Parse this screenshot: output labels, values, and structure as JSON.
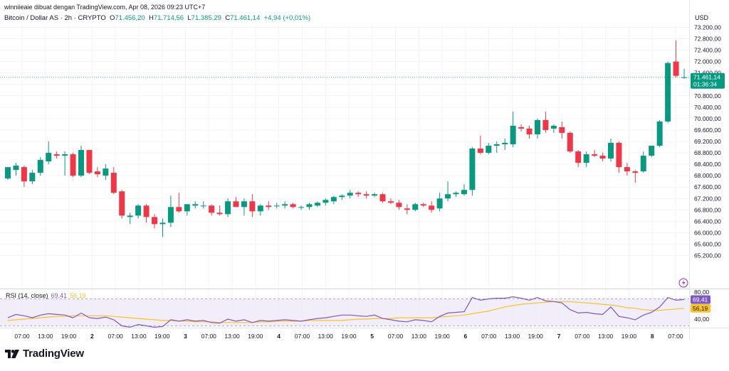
{
  "header": {
    "attribution": "winniieaie dibuat dengan TradingView.com, Apr 08, 2026 09:23 UTC+7",
    "symbol": "Bitcoin / Dollar AS · 2h · CRYPTO",
    "o_label": "O",
    "o_value": "71.456,20",
    "h_label": "H",
    "h_value": "71.714,56",
    "l_label": "L",
    "l_value": "71.385,29",
    "c_label": "C",
    "c_value": "71.461,14",
    "change": "+4,94 (+0,01%)"
  },
  "currency": "USD",
  "brand": {
    "name": "TradingView",
    "logo_icon": "tradingview-logo-icon"
  },
  "colors": {
    "up": "#089981",
    "down": "#f23645",
    "rsi": "#7e57c2",
    "rsi_ma": "#f7c325",
    "rsi_band": "#ede7f6"
  },
  "chart_data": [
    {
      "type": "candlestick",
      "title": "Bitcoin / Dollar AS · 2h · CRYPTO",
      "ylabel": "USD",
      "ylim": [
        65000,
        73500
      ],
      "yticks": [
        "73.200,00",
        "72.800,00",
        "72.400,00",
        "72.000,00",
        "71.600,00",
        "71.200,00",
        "70.800,00",
        "70.400,00",
        "70.000,00",
        "69.600,00",
        "69.200,00",
        "68.800,00",
        "68.400,00",
        "68.000,00",
        "67.600,00",
        "67.200,00",
        "66.800,00",
        "66.400,00",
        "66.000,00",
        "65.600,00",
        "65.200,00"
      ],
      "xticks": [
        "07:00",
        "13:00",
        "19:00",
        "2",
        "07:00",
        "13:00",
        "19:00",
        "3",
        "07:00",
        "13:00",
        "19:00",
        "4",
        "07:00",
        "13:00",
        "19:00",
        "5",
        "07:00",
        "13:00",
        "19:00",
        "6",
        "07:00",
        "13:00",
        "19:00",
        "7",
        "07:00",
        "13:00",
        "19:00",
        "8",
        "07:00"
      ],
      "last_price_label": "71.461,14",
      "countdown_label": "01:36:34",
      "candles": [
        {
          "o": 67900,
          "h": 68250,
          "l": 67850,
          "c": 68300
        },
        {
          "o": 68200,
          "h": 68450,
          "l": 68000,
          "c": 68350
        },
        {
          "o": 68300,
          "h": 68350,
          "l": 67600,
          "c": 67800
        },
        {
          "o": 67800,
          "h": 68200,
          "l": 67700,
          "c": 68100
        },
        {
          "o": 68100,
          "h": 68650,
          "l": 68000,
          "c": 68550
        },
        {
          "o": 68500,
          "h": 69200,
          "l": 68400,
          "c": 68800
        },
        {
          "o": 68750,
          "h": 68850,
          "l": 68600,
          "c": 68700
        },
        {
          "o": 68700,
          "h": 68850,
          "l": 68000,
          "c": 68750
        },
        {
          "o": 68750,
          "h": 68800,
          "l": 67950,
          "c": 68000
        },
        {
          "o": 68000,
          "h": 69050,
          "l": 67950,
          "c": 68900
        },
        {
          "o": 68900,
          "h": 68900,
          "l": 68050,
          "c": 68100
        },
        {
          "o": 68150,
          "h": 68300,
          "l": 67950,
          "c": 68050
        },
        {
          "o": 68000,
          "h": 68400,
          "l": 67850,
          "c": 68250
        },
        {
          "o": 68100,
          "h": 68300,
          "l": 67350,
          "c": 67400
        },
        {
          "o": 67450,
          "h": 67500,
          "l": 66500,
          "c": 66600
        },
        {
          "o": 66550,
          "h": 66700,
          "l": 66300,
          "c": 66600
        },
        {
          "o": 66600,
          "h": 67000,
          "l": 66500,
          "c": 66950
        },
        {
          "o": 66950,
          "h": 67000,
          "l": 66350,
          "c": 66550
        },
        {
          "o": 66550,
          "h": 66650,
          "l": 66150,
          "c": 66300
        },
        {
          "o": 66300,
          "h": 66500,
          "l": 65850,
          "c": 66350
        },
        {
          "o": 66350,
          "h": 67300,
          "l": 66200,
          "c": 66900
        },
        {
          "o": 66900,
          "h": 67400,
          "l": 66700,
          "c": 66750
        },
        {
          "o": 66750,
          "h": 67000,
          "l": 66600,
          "c": 67000
        },
        {
          "o": 66950,
          "h": 67100,
          "l": 66850,
          "c": 67000
        },
        {
          "o": 66950,
          "h": 67100,
          "l": 66850,
          "c": 66950
        },
        {
          "o": 66950,
          "h": 67000,
          "l": 66600,
          "c": 66700
        },
        {
          "o": 66700,
          "h": 66950,
          "l": 66600,
          "c": 66650
        },
        {
          "o": 66650,
          "h": 67200,
          "l": 66550,
          "c": 67100
        },
        {
          "o": 67100,
          "h": 67250,
          "l": 66900,
          "c": 66900
        },
        {
          "o": 66900,
          "h": 67200,
          "l": 66600,
          "c": 67100
        },
        {
          "o": 67100,
          "h": 67350,
          "l": 66550,
          "c": 66750
        },
        {
          "o": 66750,
          "h": 67000,
          "l": 66600,
          "c": 66950
        },
        {
          "o": 66950,
          "h": 67100,
          "l": 66800,
          "c": 66900
        },
        {
          "o": 66950,
          "h": 67050,
          "l": 66850,
          "c": 66950
        },
        {
          "o": 66950,
          "h": 67100,
          "l": 66850,
          "c": 67000
        },
        {
          "o": 67000,
          "h": 67050,
          "l": 66850,
          "c": 66900
        },
        {
          "o": 66900,
          "h": 66950,
          "l": 66800,
          "c": 66900
        },
        {
          "o": 66900,
          "h": 67050,
          "l": 66800,
          "c": 67000
        },
        {
          "o": 66950,
          "h": 67100,
          "l": 66900,
          "c": 67050
        },
        {
          "o": 67050,
          "h": 67200,
          "l": 66950,
          "c": 67150
        },
        {
          "o": 67100,
          "h": 67300,
          "l": 67000,
          "c": 67250
        },
        {
          "o": 67250,
          "h": 67350,
          "l": 67150,
          "c": 67300
        },
        {
          "o": 67300,
          "h": 67500,
          "l": 67200,
          "c": 67400
        },
        {
          "o": 67400,
          "h": 67450,
          "l": 67250,
          "c": 67350
        },
        {
          "o": 67350,
          "h": 67450,
          "l": 67200,
          "c": 67300
        },
        {
          "o": 67300,
          "h": 67400,
          "l": 67250,
          "c": 67350
        },
        {
          "o": 67350,
          "h": 67400,
          "l": 67050,
          "c": 67100
        },
        {
          "o": 67100,
          "h": 67200,
          "l": 67000,
          "c": 67050
        },
        {
          "o": 67050,
          "h": 67150,
          "l": 66800,
          "c": 66900
        },
        {
          "o": 66850,
          "h": 67000,
          "l": 66650,
          "c": 66800
        },
        {
          "o": 66800,
          "h": 67050,
          "l": 66750,
          "c": 67000
        },
        {
          "o": 67000,
          "h": 67050,
          "l": 66900,
          "c": 66950
        },
        {
          "o": 66950,
          "h": 67100,
          "l": 66700,
          "c": 66800
        },
        {
          "o": 66850,
          "h": 67400,
          "l": 66750,
          "c": 67200
        },
        {
          "o": 67200,
          "h": 67800,
          "l": 67100,
          "c": 67350
        },
        {
          "o": 67350,
          "h": 67450,
          "l": 67250,
          "c": 67400
        },
        {
          "o": 67350,
          "h": 67700,
          "l": 67300,
          "c": 67500
        },
        {
          "o": 67500,
          "h": 69000,
          "l": 67300,
          "c": 68950
        },
        {
          "o": 68950,
          "h": 69400,
          "l": 68750,
          "c": 68800
        },
        {
          "o": 68800,
          "h": 69150,
          "l": 68750,
          "c": 69050
        },
        {
          "o": 69050,
          "h": 69200,
          "l": 68800,
          "c": 69100
        },
        {
          "o": 69100,
          "h": 69300,
          "l": 68900,
          "c": 69150
        },
        {
          "o": 69100,
          "h": 70250,
          "l": 69000,
          "c": 69750
        },
        {
          "o": 69700,
          "h": 69800,
          "l": 69550,
          "c": 69650
        },
        {
          "o": 69650,
          "h": 69750,
          "l": 69300,
          "c": 69450
        },
        {
          "o": 69450,
          "h": 70000,
          "l": 69300,
          "c": 69950
        },
        {
          "o": 69950,
          "h": 70250,
          "l": 69500,
          "c": 69600
        },
        {
          "o": 69650,
          "h": 69800,
          "l": 69500,
          "c": 69750
        },
        {
          "o": 69700,
          "h": 69900,
          "l": 69300,
          "c": 69500
        },
        {
          "o": 69500,
          "h": 69550,
          "l": 68800,
          "c": 68850
        },
        {
          "o": 68850,
          "h": 68900,
          "l": 68300,
          "c": 68450
        },
        {
          "o": 68450,
          "h": 68850,
          "l": 68300,
          "c": 68750
        },
        {
          "o": 68750,
          "h": 68900,
          "l": 68650,
          "c": 68700
        },
        {
          "o": 68700,
          "h": 68800,
          "l": 68500,
          "c": 68600
        },
        {
          "o": 68600,
          "h": 69300,
          "l": 68500,
          "c": 69150
        },
        {
          "o": 69150,
          "h": 69200,
          "l": 68100,
          "c": 68300
        },
        {
          "o": 68300,
          "h": 68450,
          "l": 68000,
          "c": 68150
        },
        {
          "o": 68150,
          "h": 68200,
          "l": 67750,
          "c": 68100
        },
        {
          "o": 68150,
          "h": 68850,
          "l": 68100,
          "c": 68700
        },
        {
          "o": 68700,
          "h": 69050,
          "l": 68650,
          "c": 69050
        },
        {
          "o": 69050,
          "h": 69950,
          "l": 69000,
          "c": 69900
        },
        {
          "o": 69900,
          "h": 72000,
          "l": 69850,
          "c": 71950
        },
        {
          "o": 72000,
          "h": 72750,
          "l": 71450,
          "c": 71500
        },
        {
          "o": 71450,
          "h": 71750,
          "l": 71400,
          "c": 71450
        }
      ]
    },
    {
      "type": "line",
      "title": "RSI (14, close)",
      "ylim": [
        20,
        100
      ],
      "yticks": [
        "80,00",
        "40,00"
      ],
      "band": [
        30,
        70
      ],
      "series": [
        {
          "name": "RSI",
          "value_label": "69,41",
          "values": [
            42,
            47,
            45,
            42,
            46,
            48,
            47,
            46,
            42,
            49,
            42,
            41,
            43,
            39,
            30,
            28,
            32,
            30,
            28,
            29,
            39,
            37,
            39,
            37,
            38,
            35,
            34,
            40,
            37,
            39,
            35,
            38,
            37,
            38,
            39,
            38,
            37,
            39,
            41,
            42,
            44,
            46,
            46,
            45,
            44,
            46,
            41,
            39,
            37,
            36,
            39,
            38,
            36,
            44,
            49,
            50,
            51,
            72,
            68,
            70,
            71,
            71,
            73,
            71,
            68,
            72,
            67,
            66,
            64,
            54,
            49,
            50,
            48,
            47,
            58,
            44,
            42,
            39,
            46,
            50,
            58,
            72,
            68,
            69
          ]
        },
        {
          "name": "RSI MA",
          "value_label": "56,19",
          "values": [
            38,
            39,
            40,
            41,
            42,
            43,
            44,
            44,
            45,
            45,
            45,
            45,
            45,
            44,
            43,
            42,
            41,
            40,
            39,
            38,
            38,
            37,
            37,
            36,
            36,
            36,
            35,
            35,
            35,
            35,
            35,
            36,
            36,
            37,
            37,
            37,
            37,
            38,
            38,
            38,
            38,
            38,
            39,
            40,
            40,
            41,
            41,
            41,
            42,
            42,
            42,
            42,
            42,
            43,
            44,
            45,
            46,
            48,
            50,
            52,
            55,
            58,
            60,
            62,
            63,
            64,
            65,
            66,
            66,
            66,
            65,
            64,
            63,
            62,
            61,
            59,
            57,
            56,
            54,
            53,
            53,
            54,
            55,
            56
          ]
        }
      ]
    }
  ]
}
